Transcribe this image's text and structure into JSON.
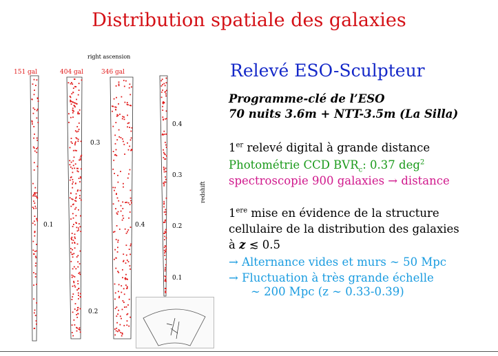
{
  "title": "Distribution spatiale des galaxies",
  "left_figure": {
    "axis_top": "right ascension",
    "axis_right": "redshift",
    "columns": [
      {
        "count_label": "151 gal",
        "points": 90
      },
      {
        "count_label": "404 gal",
        "points": 220
      },
      {
        "count_label": "346 gal",
        "points": 200
      },
      {
        "count_label": "",
        "points": 110
      }
    ],
    "z_labels": [
      "0.1",
      "0.3",
      "0.2",
      "0.4",
      "0.4",
      "0.3",
      "0.2",
      "0.1"
    ]
  },
  "right": {
    "heading": "Relevé ESO-Sculpteur",
    "prog_line1": "Programme-clé de l’ESO",
    "prog_line2": "70 nuits 3.6m + NTT-3.5m (La Silla)",
    "first_sup": "er",
    "first_rest": " relevé digital à grande distance",
    "photometry_main": "Photométrie CCD BVR",
    "photometry_sub": "c",
    "photometry_tail": ": 0.37 deg",
    "photometry_sup": "2",
    "spectro": "spectroscopie 900 galaxies → distance",
    "mise_sup": "ere",
    "mise_rest": " mise en évidence de la structure",
    "cellular": "cellulaire de la distribution des galaxies",
    "z_line_pre": "à ",
    "z_line_post": " ≲ 0.5",
    "alternance": "→ Alternance vides et murs ∼ 50 Mpc",
    "fluctuation": "→ Fluctuation à très grande échelle",
    "scale_line": "∼ 200 Mpc   (z ∼ 0.33-0.39)",
    "one": "1",
    "z": "z"
  }
}
